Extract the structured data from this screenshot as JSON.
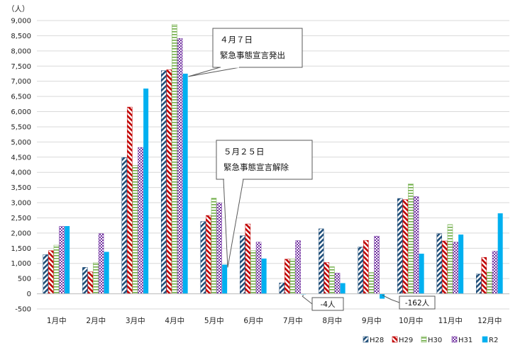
{
  "chart_data": {
    "type": "bar",
    "unit_label": "（人）",
    "categories": [
      "1月中",
      "2月中",
      "3月中",
      "4月中",
      "5月中",
      "6月中",
      "7月中",
      "8月中",
      "9月中",
      "10月中",
      "11月中",
      "12月中"
    ],
    "series": [
      {
        "name": "H28",
        "color": "#1f4e79",
        "pattern": "diagonal-stripes",
        "values": [
          1290,
          870,
          4490,
          7350,
          2380,
          1910,
          360,
          2140,
          1540,
          3140,
          1980,
          650
        ]
      },
      {
        "name": "H29",
        "color": "#c00000",
        "pattern": "diagonal-stripes",
        "values": [
          1420,
          720,
          6150,
          7380,
          2580,
          2300,
          1140,
          1030,
          1760,
          3100,
          1740,
          1200
        ]
      },
      {
        "name": "H30",
        "color": "#70ad47",
        "pattern": "horizontal-stripes",
        "values": [
          1600,
          1020,
          4230,
          8870,
          3150,
          1420,
          1150,
          890,
          700,
          3620,
          2280,
          710
        ]
      },
      {
        "name": "H31",
        "color": "#7030a0",
        "pattern": "checker",
        "values": [
          2220,
          1980,
          4820,
          8410,
          2990,
          1700,
          1750,
          680,
          1900,
          3200,
          1700,
          1400
        ]
      },
      {
        "name": "R2",
        "color": "#00b0f0",
        "pattern": "solid",
        "values": [
          2230,
          1380,
          6760,
          7250,
          960,
          1160,
          -4,
          350,
          -162,
          1320,
          1950,
          2650
        ]
      }
    ],
    "ylim": [
      -500,
      9000
    ],
    "yticks": [
      -500,
      0,
      500,
      1000,
      1500,
      2000,
      2500,
      3000,
      3500,
      4000,
      4500,
      5000,
      5500,
      6000,
      6500,
      7000,
      7500,
      8000,
      8500,
      9000
    ],
    "ytick_labels": [
      "-500",
      "0",
      "500",
      "1,000",
      "1,500",
      "2,000",
      "2,500",
      "3,000",
      "3,500",
      "4,000",
      "4,500",
      "5,000",
      "5,500",
      "6,000",
      "6,500",
      "7,000",
      "7,500",
      "8,000",
      "8,500",
      "9,000"
    ],
    "grid": true,
    "legend_position": "bottom-right",
    "annotations": [
      {
        "id": "apr-callout",
        "lines": [
          "４月７日",
          "緊急事態宣言発出"
        ],
        "target_category": 3,
        "target_series": 4
      },
      {
        "id": "may-callout",
        "lines": [
          "５月２５日",
          "緊急事態宣言解除"
        ],
        "target_category": 4,
        "target_series": 4
      }
    ],
    "value_notes": [
      {
        "id": "jul-note",
        "text": "-4人",
        "category": 6,
        "series": 4
      },
      {
        "id": "sep-note",
        "text": "-162人",
        "category": 8,
        "series": 4
      }
    ]
  }
}
